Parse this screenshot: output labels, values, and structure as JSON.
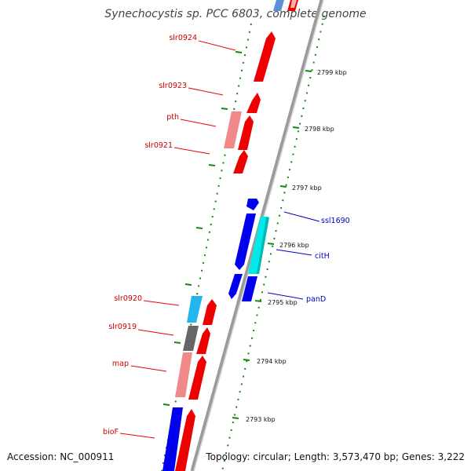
{
  "title": "Synechocystis sp. PCC 6803, complete genome",
  "footer": {
    "accession": "Accession: NC_000911",
    "summary": "Topology: circular; Length: 3,573,470 bp; Genes: 3,222"
  },
  "scale_ticks": [
    "2799 kbp",
    "2798 kbp",
    "2797 kbp",
    "2796 kbp",
    "2795 kbp",
    "2794 kbp",
    "2793 kbp"
  ],
  "genes_left": [
    {
      "label": "slr0924",
      "color": "#cc0000"
    },
    {
      "label": "slr0923",
      "color": "#cc0000"
    },
    {
      "label": "pth",
      "color": "#cc0000"
    },
    {
      "label": "slr0921",
      "color": "#cc0000"
    },
    {
      "label": "slr0920",
      "color": "#cc0000"
    },
    {
      "label": "slr0919",
      "color": "#cc0000"
    },
    {
      "label": "map",
      "color": "#cc0000"
    },
    {
      "label": "bioF",
      "color": "#cc0000"
    }
  ],
  "genes_right": [
    {
      "label": "ssl1690",
      "color": "#0000bb"
    },
    {
      "label": "citH",
      "color": "#0000bb"
    },
    {
      "label": "panD",
      "color": "#0000bb"
    }
  ],
  "colors": {
    "forward_cds": "#ee0000",
    "forward_partner": "#f08a8a",
    "reverse_cds": "#0000ee",
    "reverse_partner": "#00eaea",
    "light_blue_partner": "#22b6ee",
    "gray_partner": "#666666",
    "backbone": "#8a8a8a",
    "tick_marks": "#118811"
  }
}
